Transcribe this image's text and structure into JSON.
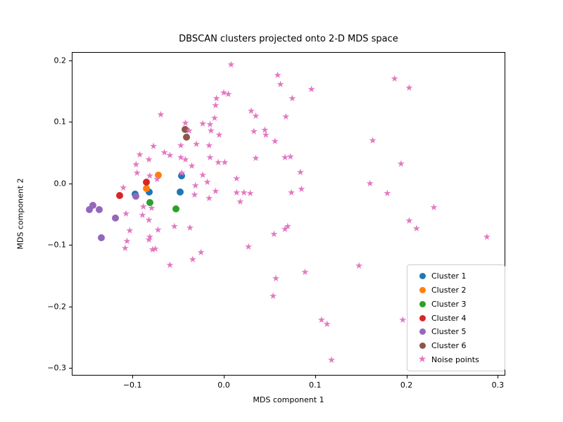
{
  "figure": {
    "title": "DBSCAN clusters projected onto 2-D MDS space",
    "xlabel": "MDS component 1",
    "ylabel": "MDS component 2"
  },
  "chart_data": {
    "type": "scatter",
    "title": "DBSCAN clusters projected onto 2-D MDS space",
    "xlabel": "MDS component 1",
    "ylabel": "MDS component 2",
    "xlim": [
      -0.1664,
      0.3082
    ],
    "ylim": [
      -0.312,
      0.2137
    ],
    "xticks": [
      -0.1,
      0.0,
      0.1,
      0.2,
      0.3
    ],
    "yticks": [
      0.2,
      0.1,
      0.0,
      -0.1,
      -0.2,
      -0.3
    ],
    "grid": false,
    "legend_position": "lower right",
    "series": [
      {
        "name": "Cluster 1",
        "color": "#1f77b4",
        "marker": "circle",
        "points": [
          [
            -0.097,
            -0.017
          ],
          [
            -0.082,
            -0.014
          ],
          [
            -0.048,
            -0.014
          ],
          [
            -0.046,
            0.013
          ]
        ]
      },
      {
        "name": "Cluster 2",
        "color": "#ff7f0e",
        "marker": "circle",
        "points": [
          [
            -0.072,
            0.014
          ],
          [
            -0.085,
            -0.008
          ]
        ]
      },
      {
        "name": "Cluster 3",
        "color": "#2ca02c",
        "marker": "circle",
        "points": [
          [
            -0.081,
            -0.031
          ],
          [
            -0.052,
            -0.041
          ]
        ]
      },
      {
        "name": "Cluster 4",
        "color": "#d62728",
        "marker": "circle",
        "points": [
          [
            -0.085,
            0.002
          ],
          [
            -0.114,
            -0.019
          ]
        ]
      },
      {
        "name": "Cluster 5",
        "color": "#9467bd",
        "marker": "circle",
        "points": [
          [
            -0.096,
            -0.021
          ],
          [
            -0.143,
            -0.035
          ],
          [
            -0.147,
            -0.042
          ],
          [
            -0.136,
            -0.042
          ],
          [
            -0.119,
            -0.056
          ],
          [
            -0.134,
            -0.088
          ]
        ]
      },
      {
        "name": "Cluster 6",
        "color": "#8c564b",
        "marker": "circle",
        "points": [
          [
            -0.042,
            0.088
          ],
          [
            -0.041,
            0.075
          ]
        ]
      },
      {
        "name": "Noise points",
        "color": "#e377c2",
        "marker": "star",
        "points": [
          [
            0.008,
            0.192
          ],
          [
            0.059,
            0.175
          ],
          [
            0.062,
            0.16
          ],
          [
            0.096,
            0.152
          ],
          [
            0.187,
            0.169
          ],
          [
            0.203,
            0.154
          ],
          [
            0.0,
            0.146
          ],
          [
            0.005,
            0.144
          ],
          [
            -0.008,
            0.137
          ],
          [
            -0.009,
            0.126
          ],
          [
            0.075,
            0.137
          ],
          [
            -0.069,
            0.111
          ],
          [
            0.03,
            0.117
          ],
          [
            0.035,
            0.109
          ],
          [
            0.068,
            0.107
          ],
          [
            -0.01,
            0.105
          ],
          [
            -0.023,
            0.096
          ],
          [
            -0.015,
            0.095
          ],
          [
            -0.042,
            0.097
          ],
          [
            -0.038,
            0.085
          ],
          [
            -0.014,
            0.085
          ],
          [
            -0.005,
            0.078
          ],
          [
            0.033,
            0.083
          ],
          [
            0.045,
            0.086
          ],
          [
            0.046,
            0.078
          ],
          [
            0.056,
            0.067
          ],
          [
            0.163,
            0.069
          ],
          [
            0.194,
            0.031
          ],
          [
            -0.077,
            0.059
          ],
          [
            -0.065,
            0.049
          ],
          [
            -0.047,
            0.061
          ],
          [
            -0.03,
            0.063
          ],
          [
            -0.016,
            0.061
          ],
          [
            -0.092,
            0.046
          ],
          [
            -0.082,
            0.038
          ],
          [
            -0.059,
            0.045
          ],
          [
            -0.047,
            0.041
          ],
          [
            -0.042,
            0.038
          ],
          [
            -0.035,
            0.027
          ],
          [
            -0.015,
            0.041
          ],
          [
            -0.006,
            0.033
          ],
          [
            0.001,
            0.033
          ],
          [
            0.035,
            0.04
          ],
          [
            0.067,
            0.041
          ],
          [
            0.073,
            0.042
          ],
          [
            -0.096,
            0.03
          ],
          [
            -0.095,
            0.016
          ],
          [
            -0.081,
            0.011
          ],
          [
            -0.073,
            0.006
          ],
          [
            -0.046,
            0.016
          ],
          [
            -0.023,
            0.013
          ],
          [
            -0.018,
            0.001
          ],
          [
            0.014,
            0.007
          ],
          [
            0.084,
            0.017
          ],
          [
            0.16,
            -0.001
          ],
          [
            -0.031,
            -0.005
          ],
          [
            -0.009,
            -0.014
          ],
          [
            -0.016,
            -0.025
          ],
          [
            0.014,
            -0.016
          ],
          [
            0.022,
            -0.016
          ],
          [
            0.029,
            -0.017
          ],
          [
            0.018,
            -0.031
          ],
          [
            0.085,
            -0.01
          ],
          [
            0.074,
            -0.016
          ],
          [
            0.179,
            -0.017
          ],
          [
            -0.11,
            -0.008
          ],
          [
            -0.032,
            -0.019
          ],
          [
            -0.088,
            -0.039
          ],
          [
            -0.079,
            -0.041
          ],
          [
            -0.107,
            -0.05
          ],
          [
            -0.089,
            -0.053
          ],
          [
            -0.082,
            -0.061
          ],
          [
            -0.103,
            -0.078
          ],
          [
            -0.054,
            -0.071
          ],
          [
            -0.037,
            -0.073
          ],
          [
            -0.072,
            -0.077
          ],
          [
            -0.081,
            -0.088
          ],
          [
            -0.106,
            -0.095
          ],
          [
            -0.108,
            -0.106
          ],
          [
            -0.082,
            -0.093
          ],
          [
            -0.078,
            -0.109
          ],
          [
            -0.075,
            -0.107
          ],
          [
            -0.059,
            -0.134
          ],
          [
            -0.034,
            -0.125
          ],
          [
            -0.025,
            -0.113
          ],
          [
            0.055,
            -0.083
          ],
          [
            0.067,
            -0.075
          ],
          [
            0.07,
            -0.071
          ],
          [
            0.027,
            -0.104
          ],
          [
            0.148,
            -0.135
          ],
          [
            0.057,
            -0.155
          ],
          [
            0.054,
            -0.184
          ],
          [
            0.089,
            -0.145
          ],
          [
            0.107,
            -0.223
          ],
          [
            0.113,
            -0.23
          ],
          [
            0.196,
            -0.223
          ],
          [
            0.118,
            -0.288
          ],
          [
            0.23,
            -0.04
          ],
          [
            0.203,
            -0.062
          ],
          [
            0.211,
            -0.074
          ],
          [
            0.288,
            -0.088
          ]
        ]
      }
    ]
  }
}
